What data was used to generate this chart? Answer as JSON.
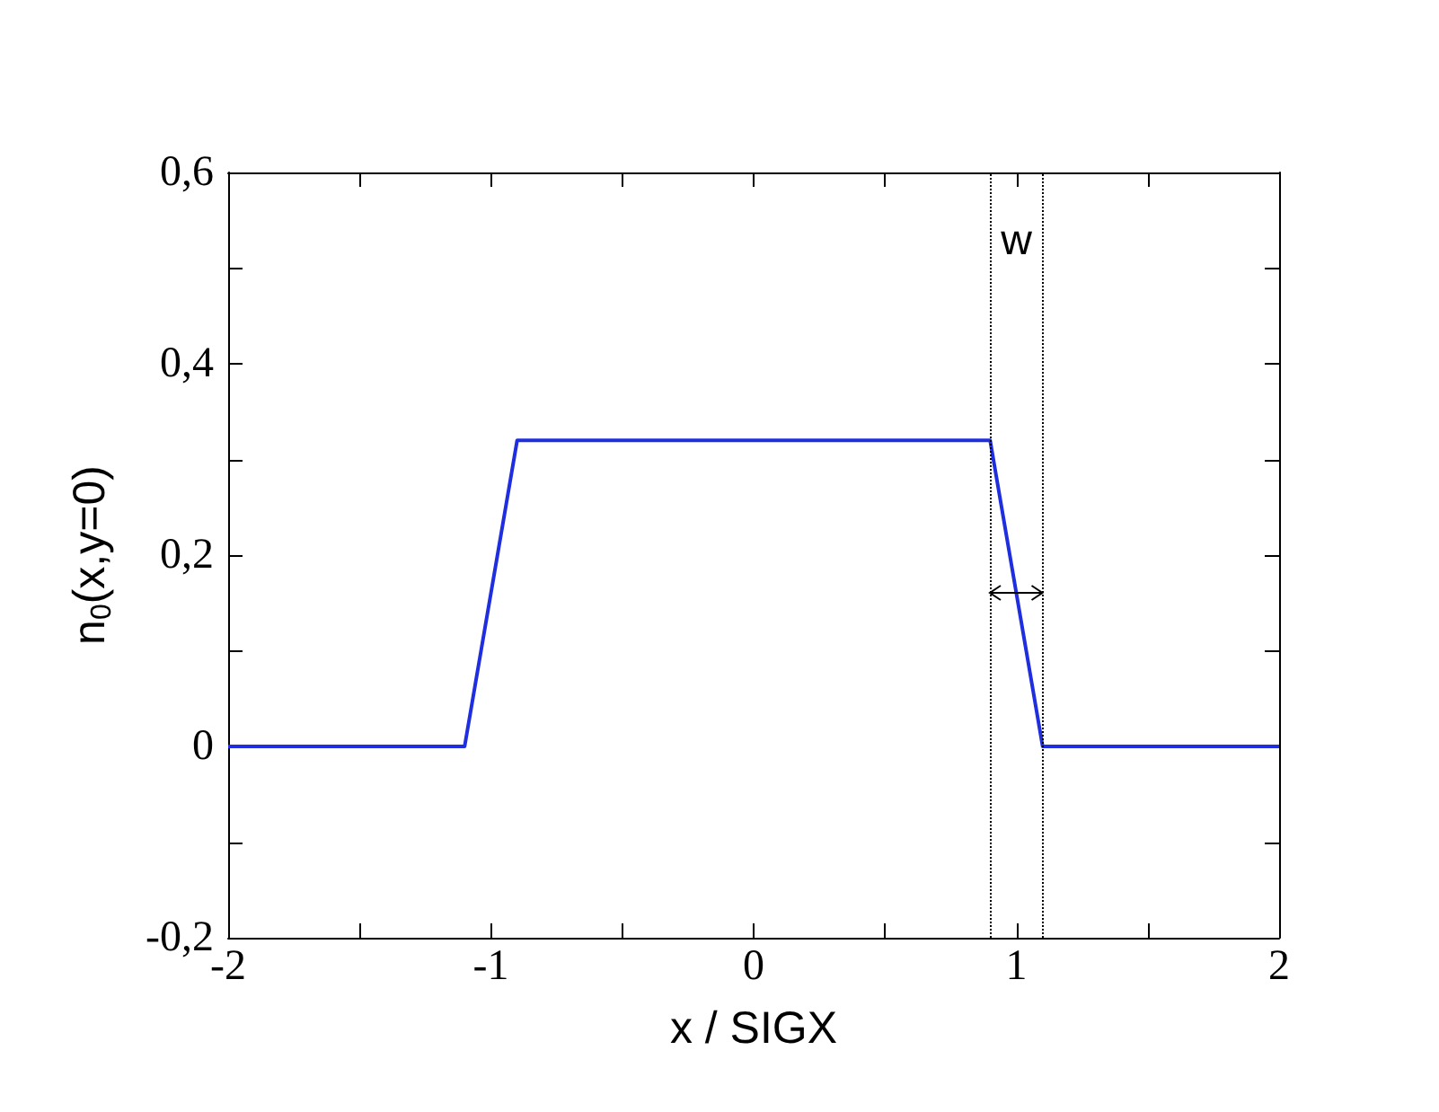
{
  "chart_data": {
    "type": "line",
    "xlabel": "x / SIGX",
    "ylabel": "n$_{0}$(x,y=0)",
    "x": [
      -2,
      -1.1,
      -0.9,
      0.9,
      1.1,
      2
    ],
    "series": [
      {
        "color": "#1f2fe0",
        "values": [
          0,
          0,
          0.32,
          0.32,
          0,
          0
        ]
      }
    ],
    "xlim": [
      -2,
      2
    ],
    "ylim": [
      -0.2,
      0.6
    ],
    "xticks": [
      -2,
      {
        "value": -1.5,
        "label": null
      },
      -1,
      {
        "value": -0.5,
        "label": null
      },
      0,
      {
        "value": 0.5,
        "label": null
      },
      1,
      {
        "value": 1.5,
        "label": null
      },
      2
    ],
    "yticks": [
      {
        "value": -0.2,
        "label": "-0,2"
      },
      {
        "value": -0.1,
        "label": null
      },
      0,
      {
        "value": 0.1,
        "label": null
      },
      {
        "value": 0.2,
        "label": "0,2"
      },
      {
        "value": 0.3,
        "label": null
      },
      {
        "value": 0.4,
        "label": "0,4"
      },
      {
        "value": 0.5,
        "label": null
      },
      {
        "value": 0.6,
        "label": "0,6"
      }
    ],
    "ref_lines": [
      {
        "axis": "x",
        "value": 0.9,
        "label": null,
        "color": "#000000",
        "line_style": "dotted"
      },
      {
        "axis": "x",
        "value": 1.1,
        "label": null,
        "color": "#000000",
        "line_style": "dotted"
      }
    ],
    "annotations": [
      "w"
    ],
    "grid": false,
    "marker": "none",
    "line_style": "solid"
  }
}
